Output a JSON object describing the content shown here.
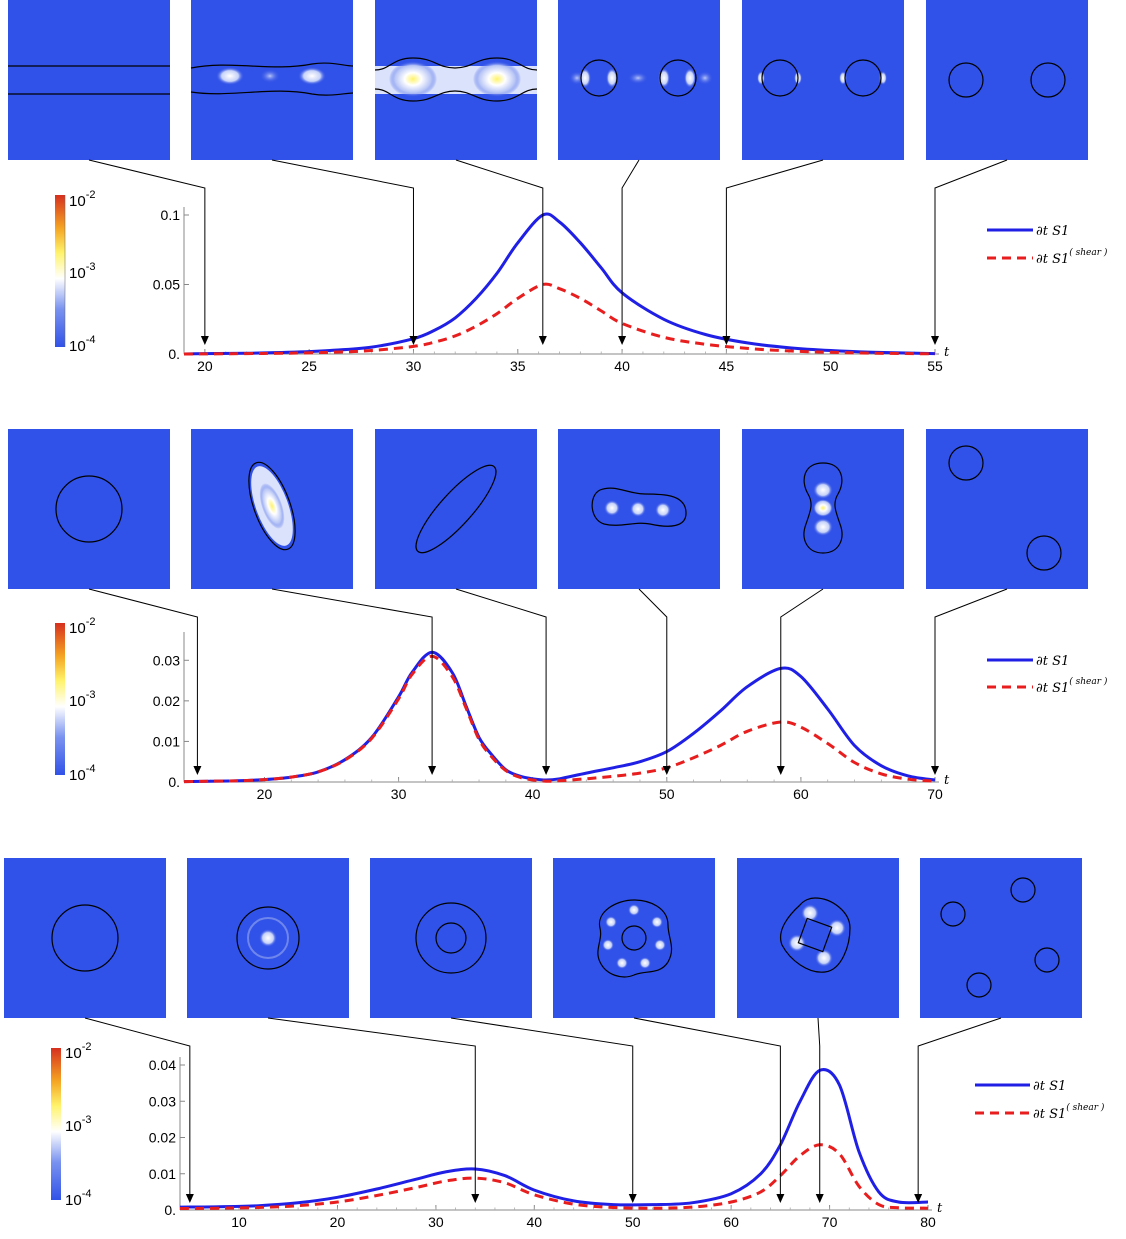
{
  "colorbar": {
    "labels": [
      "10",
      "10",
      "10"
    ],
    "exponents": [
      "-2",
      "-3",
      "-4"
    ],
    "colors": [
      "#d7301f",
      "#f5a623",
      "#fff36b",
      "#ffffff",
      "#7a93f0",
      "#3152e8"
    ]
  },
  "legend": {
    "blue_label": "∂t S1",
    "red_label": "∂t S1",
    "red_superscript": "( shear )"
  },
  "colors": {
    "panel_bg": "#3152e8",
    "blue_series": "#1f1fe6",
    "red_series": "#e81e1e"
  },
  "chart_data": [
    {
      "type": "line",
      "xlabel": "t",
      "xlim": [
        19,
        55
      ],
      "ylim": [
        0,
        0.1
      ],
      "x_ticks": [
        20,
        25,
        30,
        35,
        40,
        45,
        50,
        55
      ],
      "y_ticks": [
        "0.",
        "0.05",
        "0.1"
      ],
      "snapshot_times": [
        20,
        30,
        36.2,
        40,
        45,
        55
      ],
      "series": [
        {
          "name": "∂t S1",
          "x": [
            19,
            20,
            22,
            24,
            26,
            28,
            30,
            31,
            32,
            33,
            34,
            35,
            36.2,
            37,
            38,
            39,
            40,
            42,
            44,
            46,
            48,
            50,
            52,
            55
          ],
          "values": [
            0,
            0.0003,
            0.0006,
            0.0012,
            0.0025,
            0.005,
            0.011,
            0.017,
            0.026,
            0.04,
            0.058,
            0.08,
            0.1,
            0.095,
            0.08,
            0.062,
            0.044,
            0.025,
            0.014,
            0.008,
            0.0045,
            0.0025,
            0.0013,
            0.0003
          ]
        },
        {
          "name": "∂t S1 (shear)",
          "x": [
            19,
            20,
            22,
            24,
            26,
            28,
            30,
            31,
            32,
            33,
            34,
            35,
            36.2,
            37,
            38,
            39,
            40,
            42,
            44,
            46,
            48,
            50,
            52,
            55
          ],
          "values": [
            0,
            0.0001,
            0.0003,
            0.0006,
            0.0012,
            0.0025,
            0.0055,
            0.0085,
            0.013,
            0.02,
            0.029,
            0.04,
            0.05,
            0.047,
            0.04,
            0.031,
            0.022,
            0.012,
            0.007,
            0.004,
            0.0022,
            0.0012,
            0.0006,
            0.0001
          ]
        }
      ]
    },
    {
      "type": "line",
      "xlabel": "t",
      "xlim": [
        14,
        70
      ],
      "ylim": [
        0,
        0.035
      ],
      "x_ticks": [
        20,
        30,
        40,
        50,
        60,
        70
      ],
      "y_ticks": [
        "0.",
        "0.01",
        "0.02",
        "0.03"
      ],
      "snapshot_times": [
        15,
        32.5,
        41,
        50,
        58.5,
        70
      ],
      "series": [
        {
          "name": "∂t S1",
          "x": [
            14,
            16,
            18,
            20,
            22,
            24,
            26,
            28,
            30,
            31,
            32.5,
            34,
            35,
            36,
            37,
            38,
            39,
            40,
            41,
            42,
            44,
            46,
            48,
            50,
            52,
            54,
            56,
            58.5,
            60,
            62,
            64,
            66,
            68,
            70
          ],
          "values": [
            0.0001,
            0.0002,
            0.0003,
            0.0006,
            0.0012,
            0.0025,
            0.0055,
            0.011,
            0.021,
            0.027,
            0.032,
            0.027,
            0.019,
            0.011,
            0.0065,
            0.003,
            0.0015,
            0.0008,
            0.0005,
            0.0008,
            0.0022,
            0.0035,
            0.005,
            0.0075,
            0.012,
            0.0175,
            0.0235,
            0.028,
            0.026,
            0.018,
            0.009,
            0.004,
            0.0015,
            0.0005
          ]
        },
        {
          "name": "∂t S1 (shear)",
          "x": [
            14,
            16,
            18,
            20,
            22,
            24,
            26,
            28,
            30,
            31,
            32.5,
            34,
            35,
            36,
            37,
            38,
            39,
            40,
            41,
            42,
            44,
            46,
            48,
            50,
            52,
            54,
            56,
            58.5,
            60,
            62,
            64,
            66,
            68,
            70
          ],
          "values": [
            0.0001,
            0.0002,
            0.0003,
            0.0006,
            0.0012,
            0.0025,
            0.0054,
            0.0108,
            0.0205,
            0.0265,
            0.031,
            0.026,
            0.0185,
            0.0105,
            0.006,
            0.0028,
            0.0012,
            0.0005,
            0.0002,
            0.0003,
            0.0008,
            0.0014,
            0.0022,
            0.0035,
            0.006,
            0.009,
            0.0125,
            0.0148,
            0.0135,
            0.0095,
            0.0048,
            0.002,
            0.0007,
            0.0002
          ]
        }
      ]
    },
    {
      "type": "line",
      "xlabel": "t",
      "xlim": [
        4,
        80
      ],
      "ylim": [
        0,
        0.04
      ],
      "x_ticks": [
        10,
        20,
        30,
        40,
        50,
        60,
        70,
        80
      ],
      "y_ticks": [
        "0.",
        "0.01",
        "0.02",
        "0.03",
        "0.04"
      ],
      "snapshot_times": [
        5,
        34,
        50,
        65,
        69,
        79
      ],
      "series": [
        {
          "name": "∂t S1",
          "x": [
            4,
            8,
            12,
            16,
            20,
            24,
            28,
            31,
            34,
            37,
            40,
            44,
            48,
            52,
            56,
            60,
            63,
            65,
            67,
            69,
            71,
            73,
            75,
            77,
            80
          ],
          "values": [
            0.0008,
            0.0009,
            0.0012,
            0.002,
            0.0035,
            0.0058,
            0.0085,
            0.0105,
            0.0113,
            0.0095,
            0.0055,
            0.0025,
            0.0015,
            0.0015,
            0.002,
            0.0045,
            0.01,
            0.018,
            0.03,
            0.0385,
            0.0345,
            0.016,
            0.005,
            0.0022,
            0.0022
          ]
        },
        {
          "name": "∂t S1 (shear)",
          "x": [
            4,
            8,
            12,
            16,
            20,
            24,
            28,
            31,
            34,
            37,
            40,
            44,
            48,
            52,
            56,
            60,
            63,
            65,
            67,
            69,
            71,
            73,
            75,
            77,
            80
          ],
          "values": [
            0.0004,
            0.0005,
            0.0007,
            0.0012,
            0.0022,
            0.004,
            0.0062,
            0.008,
            0.0088,
            0.0075,
            0.0042,
            0.0016,
            0.0007,
            0.0005,
            0.0008,
            0.0022,
            0.005,
            0.0095,
            0.015,
            0.018,
            0.0155,
            0.0065,
            0.0015,
            0.0006,
            0.0005
          ]
        }
      ]
    }
  ]
}
